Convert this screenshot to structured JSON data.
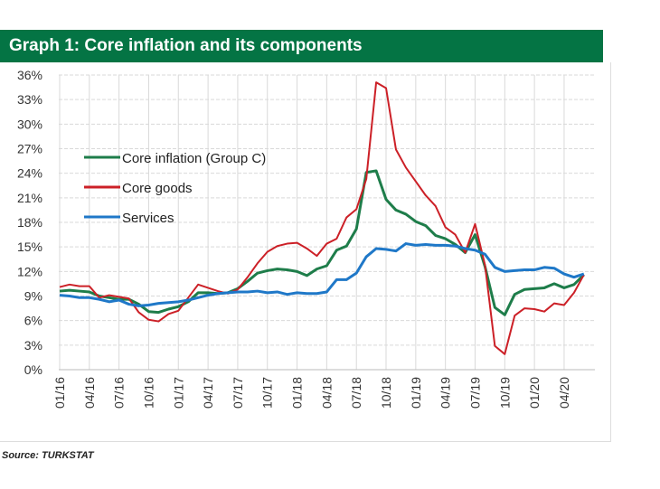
{
  "title": "Graph 1: Core inflation and its components",
  "source": "Source: TURKSTAT",
  "chart_data": {
    "type": "line",
    "title": "Graph 1: Core inflation and its components",
    "x_tick_labels": [
      "01/16",
      "04/16",
      "07/16",
      "10/16",
      "01/17",
      "04/17",
      "07/17",
      "10/17",
      "01/18",
      "04/18",
      "07/18",
      "10/18",
      "01/19",
      "04/19",
      "07/19",
      "10/19",
      "01/20",
      "04/20"
    ],
    "y_tick_labels": [
      "0%",
      "3%",
      "6%",
      "9%",
      "12%",
      "15%",
      "18%",
      "21%",
      "24%",
      "27%",
      "30%",
      "33%",
      "36%"
    ],
    "ylim": [
      0,
      36
    ],
    "grid": true,
    "legend_position": "upper-left",
    "series": [
      {
        "name": "Core inflation (Group C)",
        "color": "#1e7d4a",
        "values": [
          9.6,
          9.7,
          9.6,
          9.5,
          9.0,
          8.8,
          8.6,
          8.6,
          8.0,
          7.1,
          7.0,
          7.4,
          7.7,
          8.3,
          9.4,
          9.4,
          9.3,
          9.4,
          9.9,
          10.8,
          11.8,
          12.1,
          12.3,
          12.2,
          12.0,
          11.5,
          12.3,
          12.7,
          14.6,
          15.1,
          17.2,
          24.1,
          24.3,
          20.8,
          19.5,
          19.0,
          18.1,
          17.6,
          16.4,
          16.0,
          15.3,
          14.3,
          16.5,
          12.6,
          7.6,
          6.7,
          9.2,
          9.8,
          9.9,
          10.0,
          10.5,
          10.0,
          10.4,
          11.6
        ]
      },
      {
        "name": "Core goods",
        "color": "#cc2027",
        "values": [
          10.1,
          10.4,
          10.2,
          10.2,
          8.8,
          9.1,
          8.9,
          8.7,
          7.0,
          6.1,
          5.9,
          6.8,
          7.2,
          8.8,
          10.4,
          10.0,
          9.6,
          9.3,
          9.8,
          11.3,
          13.0,
          14.4,
          15.1,
          15.4,
          15.5,
          14.8,
          13.9,
          15.4,
          16.0,
          18.6,
          19.6,
          23.3,
          35.1,
          34.4,
          26.9,
          24.7,
          23.0,
          21.3,
          20.0,
          17.4,
          16.5,
          14.3,
          17.8,
          12.8,
          2.9,
          1.9,
          6.6,
          7.5,
          7.4,
          7.1,
          8.1,
          7.9,
          9.4,
          11.6
        ]
      },
      {
        "name": "Services",
        "color": "#1f78c8",
        "values": [
          9.1,
          9.0,
          8.8,
          8.8,
          8.6,
          8.3,
          8.5,
          8.0,
          7.8,
          7.9,
          8.1,
          8.2,
          8.3,
          8.5,
          8.8,
          9.1,
          9.3,
          9.4,
          9.5,
          9.5,
          9.6,
          9.4,
          9.5,
          9.2,
          9.4,
          9.3,
          9.3,
          9.5,
          11.0,
          11.0,
          11.8,
          13.8,
          14.8,
          14.7,
          14.5,
          15.4,
          15.2,
          15.3,
          15.2,
          15.2,
          15.1,
          14.8,
          14.6,
          14.1,
          12.5,
          12.0,
          12.1,
          12.2,
          12.2,
          12.5,
          12.4,
          11.7,
          11.3,
          11.7
        ]
      }
    ]
  }
}
